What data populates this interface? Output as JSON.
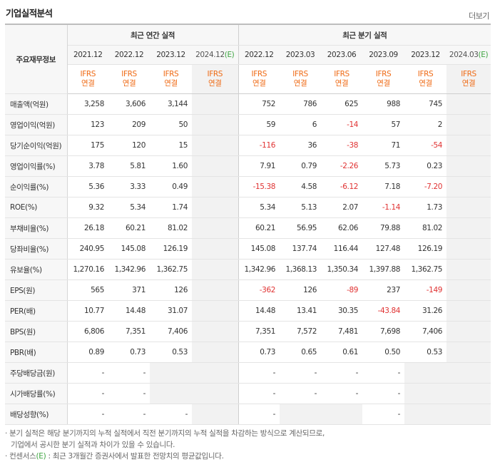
{
  "title": "기업실적분석",
  "more_label": "더보기",
  "corner_label": "주요재무정보",
  "groups": {
    "annual": "최근 연간 실적",
    "quarter": "최근 분기 실적"
  },
  "annual_periods": [
    "2021.12",
    "2022.12",
    "2023.12",
    "2024.12"
  ],
  "quarter_periods": [
    "2022.12",
    "2023.03",
    "2023.06",
    "2023.09",
    "2023.12",
    "2024.03"
  ],
  "estimate_mark": "(E)",
  "ifrs_line1": "IFRS",
  "ifrs_line2": "연결",
  "rows": [
    {
      "label": "매출액(억원)",
      "annual": [
        "3,258",
        "3,606",
        "3,144",
        ""
      ],
      "quarter": [
        "752",
        "786",
        "625",
        "988",
        "745",
        ""
      ]
    },
    {
      "label": "영업이익(억원)",
      "annual": [
        "123",
        "209",
        "50",
        ""
      ],
      "quarter": [
        "59",
        "6",
        "-14",
        "57",
        "2",
        ""
      ]
    },
    {
      "label": "당기순이익(억원)",
      "annual": [
        "175",
        "120",
        "15",
        ""
      ],
      "quarter": [
        "-116",
        "36",
        "-38",
        "71",
        "-54",
        ""
      ]
    },
    {
      "label": "영업이익률(%)",
      "annual": [
        "3.78",
        "5.81",
        "1.60",
        ""
      ],
      "quarter": [
        "7.91",
        "0.79",
        "-2.26",
        "5.73",
        "0.23",
        ""
      ]
    },
    {
      "label": "순이익률(%)",
      "annual": [
        "5.36",
        "3.33",
        "0.49",
        ""
      ],
      "quarter": [
        "-15.38",
        "4.58",
        "-6.12",
        "7.18",
        "-7.20",
        ""
      ]
    },
    {
      "label": "ROE(%)",
      "annual": [
        "9.32",
        "5.34",
        "1.74",
        ""
      ],
      "quarter": [
        "5.34",
        "5.13",
        "2.07",
        "-1.14",
        "1.73",
        ""
      ]
    },
    {
      "label": "부채비율(%)",
      "annual": [
        "26.18",
        "60.21",
        "81.02",
        ""
      ],
      "quarter": [
        "60.21",
        "56.95",
        "62.06",
        "79.88",
        "81.02",
        ""
      ]
    },
    {
      "label": "당좌비율(%)",
      "annual": [
        "240.95",
        "145.08",
        "126.19",
        ""
      ],
      "quarter": [
        "145.08",
        "137.74",
        "116.44",
        "127.48",
        "126.19",
        ""
      ]
    },
    {
      "label": "유보율(%)",
      "annual": [
        "1,270.16",
        "1,342.96",
        "1,362.75",
        ""
      ],
      "quarter": [
        "1,342.96",
        "1,368.13",
        "1,350.34",
        "1,397.88",
        "1,362.75",
        ""
      ]
    },
    {
      "label": "EPS(원)",
      "annual": [
        "565",
        "371",
        "126",
        ""
      ],
      "quarter": [
        "-362",
        "126",
        "-89",
        "237",
        "-149",
        ""
      ]
    },
    {
      "label": "PER(배)",
      "annual": [
        "10.77",
        "14.48",
        "31.07",
        ""
      ],
      "quarter": [
        "14.48",
        "13.41",
        "30.35",
        "-43.84",
        "31.26",
        ""
      ]
    },
    {
      "label": "BPS(원)",
      "annual": [
        "6,806",
        "7,351",
        "7,406",
        ""
      ],
      "quarter": [
        "7,351",
        "7,572",
        "7,481",
        "7,698",
        "7,406",
        ""
      ]
    },
    {
      "label": "PBR(배)",
      "annual": [
        "0.89",
        "0.73",
        "0.53",
        ""
      ],
      "quarter": [
        "0.73",
        "0.65",
        "0.61",
        "0.50",
        "0.53",
        ""
      ]
    },
    {
      "label": "주당배당금(원)",
      "annual": [
        "-",
        "-",
        "",
        ""
      ],
      "quarter": [
        "-",
        "-",
        "-",
        "-",
        "",
        ""
      ]
    },
    {
      "label": "시가배당률(%)",
      "annual": [
        "-",
        "-",
        "",
        ""
      ],
      "quarter": [
        "-",
        "-",
        "-",
        "-",
        "",
        ""
      ]
    },
    {
      "label": "배당성향(%)",
      "annual": [
        "-",
        "-",
        "-",
        ""
      ],
      "quarter": [
        "-",
        "",
        "",
        "-",
        "",
        ""
      ]
    }
  ],
  "notes": [
    "· 분기 실적은 해당 분기까지의 누적 실적에서 직전 분기까지의 누적 실적을 차감하는 방식으로 계산되므로,",
    "  기업에서 공시한 분기 실적과 차이가 있을 수 있습니다.",
    "· 컨센서스(E) : 최근 3개월간 증권사에서 발표한 전망치의 평균값입니다."
  ],
  "colors": {
    "ifrs": "#ef6a14",
    "negative": "#e03232",
    "estimate": "#3fa542",
    "estimate_bg": "#f2f2f2"
  }
}
